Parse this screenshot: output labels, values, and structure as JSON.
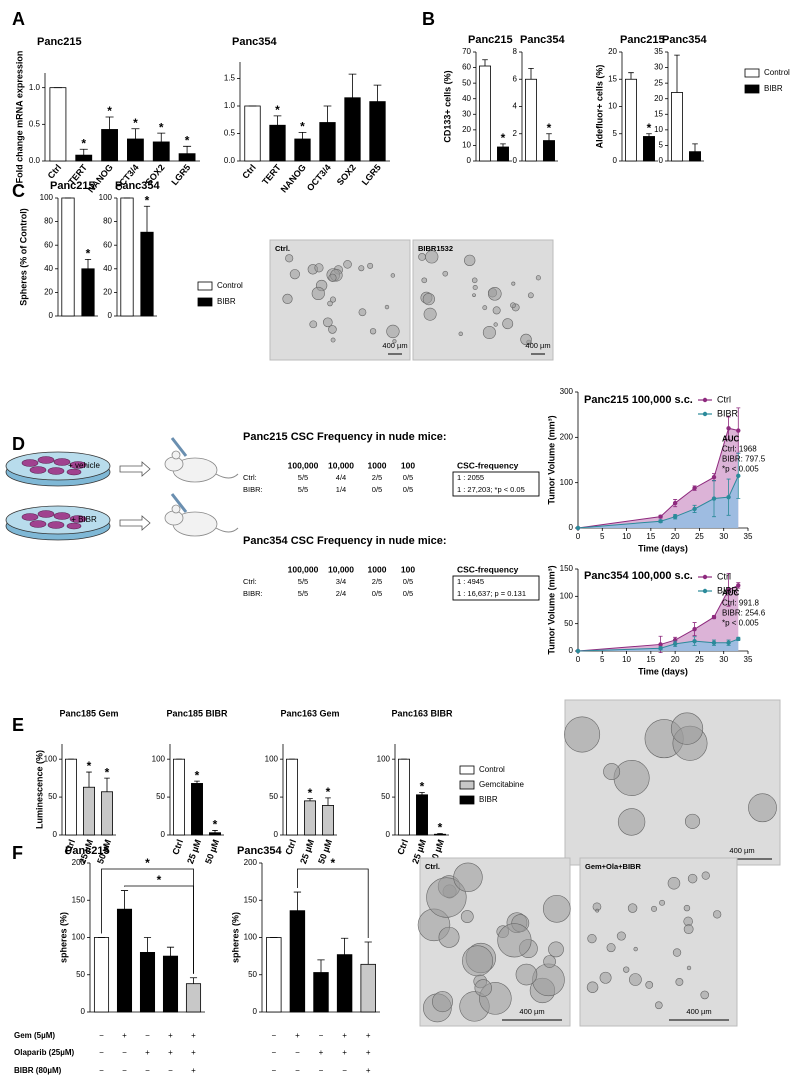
{
  "panels": [
    "A",
    "B",
    "C",
    "D",
    "E",
    "F"
  ],
  "chart_data": [
    {
      "type": "bar",
      "title": "Panc215",
      "ylabel": "Fold change mRNA expression",
      "categories": [
        "Ctrl",
        "TERT",
        "NANOG",
        "OCT3/4",
        "SOX2",
        "LGR5"
      ],
      "values": [
        1.0,
        0.08,
        0.43,
        0.3,
        0.26,
        0.1
      ],
      "errors": [
        0,
        0.08,
        0.17,
        0.14,
        0.12,
        0.1
      ],
      "colors": [
        "#ffffff",
        "#000000",
        "#000000",
        "#000000",
        "#000000",
        "#000000"
      ],
      "stars": [
        null,
        "*",
        "*",
        "*",
        "*",
        "*"
      ],
      "ylim": [
        0,
        1.2
      ],
      "yticks": [
        {
          "value": 0,
          "label": "0.0"
        },
        {
          "value": 0.5,
          "label": "0.5"
        },
        {
          "value": 1,
          "label": "1.0"
        }
      ]
    },
    {
      "type": "bar",
      "title": "Panc354",
      "categories": [
        "Ctrl",
        "TERT",
        "NANOG",
        "OCT3/4",
        "SOX2",
        "LGR5"
      ],
      "values": [
        1.0,
        0.65,
        0.4,
        0.7,
        1.15,
        1.08
      ],
      "errors": [
        0,
        0.17,
        0.12,
        0.3,
        0.43,
        0.3
      ],
      "colors": [
        "#ffffff",
        "#000000",
        "#000000",
        "#000000",
        "#000000",
        "#000000"
      ],
      "stars": [
        null,
        "*",
        "*",
        null,
        null,
        null
      ],
      "ylim": [
        0,
        1.8
      ],
      "yticks": [
        {
          "value": 0,
          "label": "0.0"
        },
        {
          "value": 0.5,
          "label": "0.5"
        },
        {
          "value": 1,
          "label": "1.0"
        },
        {
          "value": 1.5,
          "label": "1.5"
        }
      ]
    },
    {
      "type": "bar",
      "title": "Panc215",
      "ylabel": "CD133+ cells (%)",
      "values": [
        61,
        9
      ],
      "errors": [
        4,
        2
      ],
      "colors": [
        "#ffffff",
        "#000000"
      ],
      "stars": [
        null,
        "*"
      ],
      "ylim": [
        0,
        70
      ],
      "yticks": [
        0,
        10,
        20,
        30,
        40,
        50,
        60,
        70
      ]
    },
    {
      "type": "bar",
      "title": "Panc354",
      "values": [
        6,
        1.5
      ],
      "errors": [
        0.8,
        0.5
      ],
      "colors": [
        "#ffffff",
        "#000000"
      ],
      "stars": [
        null,
        "*"
      ],
      "ylim": [
        0,
        8
      ],
      "yticks": [
        0,
        2,
        4,
        6,
        8
      ]
    },
    {
      "type": "bar",
      "title": "Panc215",
      "ylabel": "Aldefluor+ cells (%)",
      "values": [
        15,
        4.5
      ],
      "errors": [
        1.2,
        0.5
      ],
      "colors": [
        "#ffffff",
        "#000000"
      ],
      "stars": [
        null,
        "*"
      ],
      "ylim": [
        0,
        20
      ],
      "yticks": [
        0,
        5,
        10,
        15,
        20
      ]
    },
    {
      "type": "bar",
      "title": "Panc354",
      "values": [
        22,
        3
      ],
      "errors": [
        12,
        2.5
      ],
      "colors": [
        "#ffffff",
        "#000000"
      ],
      "ylim": [
        0,
        35
      ],
      "yticks": [
        0,
        5,
        10,
        15,
        20,
        25,
        30,
        35
      ]
    },
    {
      "type": "bar",
      "title": "Panc215",
      "ylabel": "Spheres (% of Control)",
      "values": [
        100,
        40
      ],
      "errors": [
        0,
        8
      ],
      "colors": [
        "#ffffff",
        "#000000"
      ],
      "stars": [
        null,
        "*"
      ],
      "ylim": [
        0,
        100
      ],
      "yticks": [
        0,
        20,
        40,
        60,
        80,
        100
      ]
    },
    {
      "type": "bar",
      "title": "Panc354",
      "values": [
        100,
        71
      ],
      "errors": [
        0,
        22
      ],
      "colors": [
        "#ffffff",
        "#000000"
      ],
      "stars": [
        null,
        "*"
      ],
      "ylim": [
        0,
        100
      ],
      "yticks": [
        0,
        20,
        40,
        60,
        80,
        100
      ]
    },
    {
      "type": "line",
      "title": "Panc215 100,000 s.c.",
      "ylabel": "Tumor Volume (mm³)",
      "xlabel": "Time (days)",
      "x": [
        0,
        17,
        20,
        24,
        28,
        31,
        33
      ],
      "series": [
        {
          "name": "Ctrl",
          "color": "#8e2a7e",
          "fill": "#d6a6d0",
          "values": [
            0,
            25,
            55,
            88,
            112,
            220,
            215
          ],
          "errors": [
            0,
            3,
            8,
            5,
            8,
            25,
            50
          ]
        },
        {
          "name": "BIBR",
          "color": "#2b8a9a",
          "fill": "#93bde3",
          "values": [
            0,
            15,
            25,
            42,
            65,
            68,
            115
          ],
          "errors": [
            0,
            3,
            5,
            8,
            40,
            40,
            50
          ]
        }
      ],
      "notes": [
        "AUC",
        "Ctrl: 1968",
        "BIBR: 797.5",
        "*p < 0.005"
      ],
      "xlim": [
        0,
        35
      ],
      "xticks": [
        0,
        5,
        10,
        15,
        20,
        25,
        30,
        35
      ],
      "ylim": [
        0,
        300
      ],
      "yticks": [
        0,
        100,
        200,
        300
      ]
    },
    {
      "type": "line",
      "title": "Panc354 100,000 s.c.",
      "ylabel": "Tumor Volume (mm³)",
      "xlabel": "Time (days)",
      "x": [
        0,
        17,
        20,
        24,
        28,
        31,
        33
      ],
      "series": [
        {
          "name": "Ctrl",
          "color": "#8e2a7e",
          "fill": "#d6a6d0",
          "values": [
            0,
            12,
            20,
            40,
            62,
            112,
            120
          ],
          "errors": [
            0,
            15,
            5,
            12,
            3,
            30,
            5
          ]
        },
        {
          "name": "BIBR",
          "color": "#2b8a9a",
          "fill": "#93bde3",
          "values": [
            0,
            5,
            13,
            18,
            15,
            15,
            22
          ],
          "errors": [
            0,
            3,
            5,
            8,
            5,
            5,
            3
          ]
        }
      ],
      "notes": [
        "AUC",
        "Ctrl: 991.8",
        "BIBR: 254.6",
        "*p < 0.005"
      ],
      "xlim": [
        0,
        35
      ],
      "xticks": [
        0,
        5,
        10,
        15,
        20,
        25,
        30,
        35
      ],
      "ylim": [
        0,
        150
      ],
      "yticks": [
        0,
        50,
        100,
        150
      ]
    },
    {
      "type": "bar",
      "title": "Panc185 Gem",
      "ylabel": "Luminescence (%)",
      "categories": [
        "Ctrl",
        "25 µM",
        "50 µM"
      ],
      "values": [
        100,
        63,
        57
      ],
      "errors": [
        0,
        20,
        18
      ],
      "colors": [
        "#ffffff",
        "#c8c8c8",
        "#c8c8c8"
      ],
      "stars": [
        null,
        "*",
        "*"
      ],
      "ylim": [
        0,
        120
      ],
      "yticks": [
        0,
        50,
        100
      ]
    },
    {
      "type": "bar",
      "title": "Panc185 BIBR",
      "categories": [
        "Ctrl",
        "25 µM",
        "50 µM"
      ],
      "values": [
        100,
        68,
        3
      ],
      "errors": [
        0,
        3,
        3
      ],
      "colors": [
        "#ffffff",
        "#000000",
        "#000000"
      ],
      "stars": [
        null,
        "*",
        "*"
      ],
      "ylim": [
        0,
        120
      ],
      "yticks": [
        0,
        50,
        100
      ]
    },
    {
      "type": "bar",
      "title": "Panc163 Gem",
      "categories": [
        "Ctrl",
        "25 µM",
        "50 µM"
      ],
      "values": [
        100,
        45,
        39
      ],
      "errors": [
        0,
        3,
        10
      ],
      "colors": [
        "#ffffff",
        "#c8c8c8",
        "#c8c8c8"
      ],
      "stars": [
        null,
        "*",
        "*"
      ],
      "ylim": [
        0,
        120
      ],
      "yticks": [
        0,
        50,
        100
      ]
    },
    {
      "type": "bar",
      "title": "Panc163 BIBR",
      "categories": [
        "Ctrl",
        "25 µM",
        "50 µM"
      ],
      "values": [
        100,
        53,
        1
      ],
      "errors": [
        0,
        3,
        1
      ],
      "colors": [
        "#ffffff",
        "#000000",
        "#000000"
      ],
      "stars": [
        null,
        "*",
        "*"
      ],
      "ylim": [
        0,
        120
      ],
      "yticks": [
        0,
        50,
        100
      ]
    },
    {
      "type": "bar",
      "title": "Panc215",
      "ylabel": "spheres (%)",
      "values": [
        100,
        138,
        80,
        75,
        38
      ],
      "errors": [
        0,
        25,
        20,
        12,
        8
      ],
      "colors": [
        "#ffffff",
        "#000000",
        "#000000",
        "#000000",
        "#c8c8c8"
      ],
      "brackets": [
        {
          "from": 1,
          "to": 4,
          "label": "*"
        },
        {
          "from": 0,
          "to": 4,
          "label": "*"
        }
      ],
      "ylim": [
        0,
        200
      ],
      "yticks": [
        0,
        50,
        100,
        150,
        200
      ]
    },
    {
      "type": "bar",
      "title": "Panc354",
      "ylabel": "spheres (%)",
      "values": [
        100,
        136,
        53,
        77,
        64
      ],
      "errors": [
        0,
        25,
        17,
        22,
        30
      ],
      "colors": [
        "#ffffff",
        "#000000",
        "#000000",
        "#000000",
        "#c8c8c8"
      ],
      "brackets": [
        {
          "from": 1,
          "to": 4,
          "label": "*"
        }
      ],
      "ylim": [
        0,
        200
      ],
      "yticks": [
        0,
        50,
        100,
        150,
        200
      ]
    }
  ],
  "legends": [
    {
      "entries": [
        {
          "name": "Control",
          "color": "#ffffff"
        },
        {
          "name": "BIBR",
          "color": "#000000"
        }
      ]
    },
    {
      "entries": [
        {
          "name": "Control",
          "color": "#ffffff"
        },
        {
          "name": "BIBR",
          "color": "#000000"
        }
      ]
    },
    {
      "entries": [
        {
          "name": "Control",
          "color": "#ffffff"
        },
        {
          "name": "Gemcitabine",
          "color": "#c8c8c8"
        },
        {
          "name": "BIBR",
          "color": "#000000"
        }
      ]
    }
  ],
  "treatments": [
    {
      "name": "Gem (5µM)",
      "signs": [
        "−",
        "+",
        "−",
        "+",
        "+"
      ]
    },
    {
      "name": "Olaparib (25µM)",
      "signs": [
        "−",
        "−",
        "+",
        "+",
        "+"
      ]
    },
    {
      "name": "BIBR (80µM)",
      "signs": [
        "−",
        "−",
        "−",
        "−",
        "+"
      ]
    }
  ],
  "illustration": {
    "labels": [
      "+ vehicle",
      "+ BIBR"
    ]
  },
  "tables": [
    {
      "title": "Panc215 CSC Frequency in nude mice:",
      "headers": [
        "100,000",
        "10,000",
        "1000",
        "100",
        "CSC-frequency"
      ],
      "rows": [
        [
          "Ctrl:",
          "5/5",
          "4/4",
          "2/5",
          "0/5",
          "1 : 2055"
        ],
        [
          "BIBR:",
          "5/5",
          "1/4",
          "0/5",
          "0/5",
          "1 : 27,203; *p < 0.05"
        ]
      ]
    },
    {
      "title": "Panc354 CSC Frequency in nude mice:",
      "headers": [
        "100,000",
        "10,000",
        "1000",
        "100",
        "CSC-frequency"
      ],
      "rows": [
        [
          "Ctrl:",
          "5/5",
          "3/4",
          "2/5",
          "0/5",
          "1 : 4945"
        ],
        [
          "BIBR:",
          "5/5",
          "2/4",
          "0/5",
          "0/5",
          "1 : 16,637; p = 0.131"
        ]
      ]
    }
  ],
  "images": [
    {
      "label": "Ctrl.",
      "scale": "400 µm"
    },
    {
      "label": "BIBR1532",
      "scale": "400 µm"
    },
    {
      "scale": "400 µm"
    },
    {
      "label": "Ctrl.",
      "scale": "400 µm"
    },
    {
      "label": "Gem+Ola+BIBR",
      "scale": "400 µm"
    }
  ]
}
